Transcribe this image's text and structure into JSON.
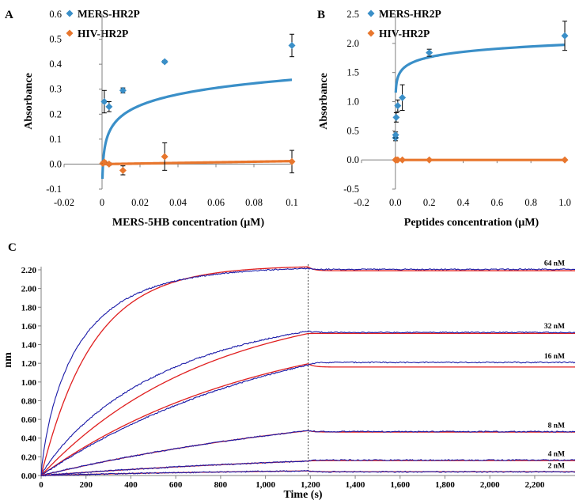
{
  "colors": {
    "mers": "#3a8fc8",
    "hiv": "#e8762d",
    "measured": "#1a1aa8",
    "fit": "#e02020",
    "guide": "#404040"
  },
  "chart_data": [
    {
      "panel": "A",
      "type": "scatter",
      "xlabel": "MERS-5HB concentration (μM)",
      "ylabel": "Absorbance",
      "xlim": [
        -0.02,
        0.1
      ],
      "ylim": [
        -0.1,
        0.6
      ],
      "xticks": [
        -0.02,
        0,
        0.02,
        0.04,
        0.06,
        0.08,
        0.1
      ],
      "yticks": [
        -0.1,
        0.0,
        0.1,
        0.2,
        0.3,
        0.4,
        0.5,
        0.6
      ],
      "xtick_labels": [
        "-0.02",
        "0",
        "0.02",
        "0.04",
        "0.06",
        "0.08",
        "0.1"
      ],
      "ytick_labels": [
        "-0.1",
        "0.0",
        "0.1",
        "0.2",
        "0.3",
        "0.4",
        "0.5",
        "0.6"
      ],
      "legend": [
        "MERS-HR2P",
        "HIV-HR2P"
      ],
      "series": [
        {
          "name": "MERS-HR2P",
          "x": [
            0.0012,
            0.0037,
            0.011,
            0.033,
            0.1
          ],
          "y": [
            0.25,
            0.23,
            0.295,
            0.41,
            0.475
          ],
          "err": [
            0.045,
            0.02,
            0.01,
            0.005,
            0.045
          ],
          "fit": {
            "type": "log",
            "a": 0.4845,
            "b": 0.0638,
            "x_start": 0.0002
          }
        },
        {
          "name": "HIV-HR2P",
          "x": [
            0.0004,
            0.0012,
            0.0037,
            0.011,
            0.033,
            0.1
          ],
          "y": [
            0.003,
            0.008,
            0.0,
            -0.025,
            0.03,
            0.01
          ],
          "err": [
            0.005,
            0.005,
            0.005,
            0.018,
            0.055,
            0.045
          ],
          "fit": {
            "type": "linear",
            "m": 0.12,
            "c": 0.0,
            "x_start": 0.0
          }
        }
      ]
    },
    {
      "panel": "B",
      "type": "scatter",
      "xlabel": "Peptides concentration (μM)",
      "ylabel": "Absorbance",
      "xlim": [
        -0.2,
        1.0
      ],
      "ylim": [
        -0.5,
        2.5
      ],
      "xticks": [
        -0.2,
        0,
        0.2,
        0.4,
        0.6,
        0.8,
        1.0
      ],
      "yticks": [
        -0.5,
        0.0,
        0.5,
        1.0,
        1.5,
        2.0,
        2.5
      ],
      "xtick_labels": [
        "-0.2",
        "0.0",
        "0.2",
        "0.4",
        "0.6",
        "0.8",
        "1.0"
      ],
      "ytick_labels": [
        "-0.5",
        "0.0",
        "0.5",
        "1.0",
        "1.5",
        "2.0",
        "2.5"
      ],
      "legend": [
        "MERS-HR2P",
        "HIV-HR2P"
      ],
      "series": [
        {
          "name": "MERS-HR2P",
          "x": [
            0.0005,
            0.0015,
            0.005,
            0.014,
            0.041,
            0.2,
            1.0
          ],
          "y": [
            0.38,
            0.43,
            0.73,
            0.93,
            1.07,
            1.84,
            2.13
          ],
          "err": [
            0.05,
            0.05,
            0.08,
            0.1,
            0.22,
            0.06,
            0.25
          ],
          "fit": {
            "type": "log",
            "a": 1.9756,
            "b": 0.1321,
            "x_start": 0.002
          }
        },
        {
          "name": "HIV-HR2P",
          "x": [
            0.0005,
            0.0015,
            0.005,
            0.014,
            0.041,
            0.2,
            1.0
          ],
          "y": [
            0.0,
            0.0,
            0.0,
            0.0,
            0.0,
            0.0,
            0.0
          ],
          "err": [
            0.0,
            0.0,
            0.0,
            0.0,
            0.0,
            0.0,
            0.0
          ],
          "fit": {
            "type": "linear",
            "m": 0.0,
            "c": 0.0,
            "x_start": 0.0
          }
        }
      ]
    },
    {
      "panel": "C",
      "type": "line",
      "xlabel": "Time (s)",
      "ylabel": "nm",
      "xlim": [
        0,
        2380
      ],
      "ylim": [
        0,
        2.2
      ],
      "xticks": [
        0,
        200,
        400,
        600,
        800,
        1000,
        1200,
        1400,
        1600,
        1800,
        2000,
        2200
      ],
      "yticks": [
        0,
        0.2,
        0.4,
        0.6,
        0.8,
        1.0,
        1.2,
        1.4,
        1.6,
        1.8,
        2.0,
        2.2
      ],
      "xtick_labels": [
        "0",
        "200",
        "400",
        "600",
        "800",
        "1,000",
        "1,200",
        "1,400",
        "1,600",
        "1,800",
        "2,000",
        "2,200"
      ],
      "ytick_labels": [
        "0.00",
        "0.20",
        "0.40",
        "0.60",
        "0.80",
        "1.00",
        "1.20",
        "1.40",
        "1.60",
        "1.80",
        "2.00",
        "2.20"
      ],
      "association_end": 1190,
      "series": [
        {
          "name": "64 nM",
          "plateau_meas": 2.24,
          "rate_meas": 0.0058,
          "plateau_fit": 2.245,
          "rate_fit": 0.0043,
          "diss_meas": 2.205,
          "diss_fit": 2.19,
          "stretch": 0.78
        },
        {
          "name": "32 nM",
          "plateau_meas": 1.82,
          "rate_meas": 0.0017,
          "plateau_fit": 1.9,
          "rate_fit": 0.00135,
          "diss_meas": 1.53,
          "diss_fit": 1.52,
          "stretch": 0.9
        },
        {
          "name": "16 nM",
          "plateau_meas": 1.8,
          "rate_meas": 0.0009,
          "plateau_fit": 1.7,
          "rate_fit": 0.00102,
          "diss_meas": 1.21,
          "diss_fit": 1.16,
          "stretch": 1.0
        },
        {
          "name": "8 nM",
          "plateau_meas": 0.9,
          "rate_meas": 0.00064,
          "plateau_fit": 0.9,
          "rate_fit": 0.00064,
          "diss_meas": 0.47,
          "diss_fit": 0.465,
          "stretch": 1.0
        },
        {
          "name": "4 nM",
          "plateau_meas": 0.3,
          "rate_meas": 0.00061,
          "plateau_fit": 0.3,
          "rate_fit": 0.00061,
          "diss_meas": 0.165,
          "diss_fit": 0.16,
          "stretch": 1.0
        },
        {
          "name": "2 nM",
          "plateau_meas": 0.08,
          "rate_meas": 0.0008,
          "plateau_fit": 0.08,
          "rate_fit": 0.0008,
          "diss_meas": 0.04,
          "diss_fit": 0.04,
          "stretch": 1.0
        }
      ]
    }
  ]
}
